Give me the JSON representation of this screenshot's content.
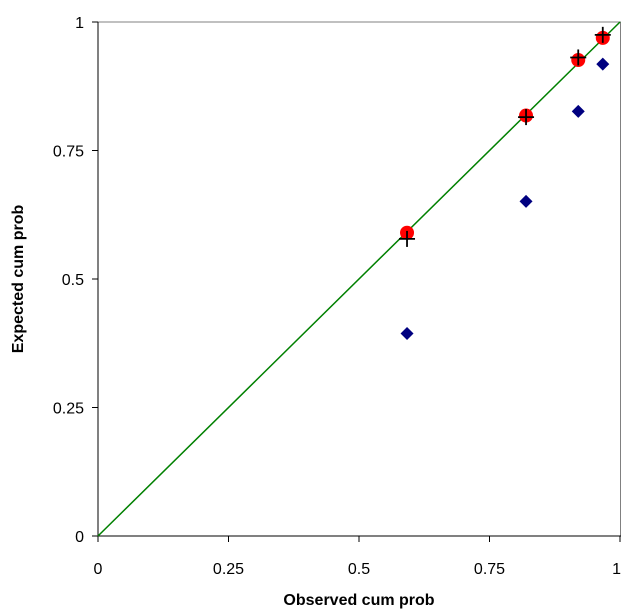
{
  "chart_data": {
    "type": "scatter",
    "xlabel": "Observed cum prob",
    "ylabel": "Expected cum prob",
    "xlim": [
      0,
      1
    ],
    "ylim": [
      0,
      1
    ],
    "x_ticks": [
      0,
      0.25,
      0.5,
      0.75,
      1
    ],
    "y_ticks": [
      0,
      0.25,
      0.5,
      0.75,
      1
    ],
    "x_tick_labels": [
      "0",
      "0.25",
      "0.5",
      "0.75",
      "1"
    ],
    "y_tick_labels": [
      "0",
      "0.25",
      "0.5",
      "0.75",
      "1"
    ],
    "grid": false,
    "legend": "none",
    "reference_line": {
      "x": [
        0,
        1
      ],
      "y": [
        0,
        1
      ],
      "color": "#008000"
    },
    "series": [
      {
        "marker": "diamond",
        "color": "#000080",
        "x": [
          0.592,
          0.82,
          0.92,
          0.967
        ],
        "y": [
          0.394,
          0.651,
          0.826,
          0.918
        ]
      },
      {
        "marker": "circle",
        "color": "#ff0000",
        "x": [
          0.592,
          0.82,
          0.92,
          0.967
        ],
        "y": [
          0.59,
          0.818,
          0.926,
          0.969
        ]
      },
      {
        "marker": "plus",
        "color": "#000000",
        "x": [
          0.592,
          0.82,
          0.92,
          0.967
        ],
        "y": [
          0.578,
          0.815,
          0.931,
          0.975
        ]
      }
    ]
  }
}
